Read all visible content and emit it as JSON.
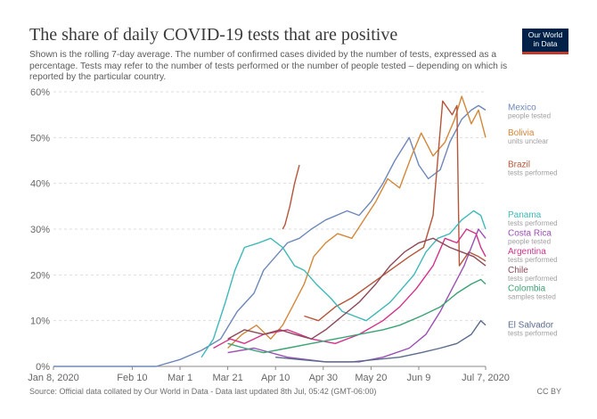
{
  "header": {
    "title": "The share of daily COVID-19 tests that are positive",
    "subtitle": "Shown is the rolling 7-day average. The number of confirmed cases divided by the number of tests, expressed as a percentage. Tests may refer to the number of tests performed or the number of people tested – depending on which is reported by the particular country.",
    "logo_line1": "Our World",
    "logo_line2": "in Data"
  },
  "footer": {
    "source": "Source: Official data collated by Our World in Data - Data last updated 8th Jul, 05:42 (GMT-06:00)",
    "license": "CC BY"
  },
  "colors": {
    "Mexico": "#6d88b8",
    "Bolivia": "#d2873a",
    "Brazil": "#b5563a",
    "Panama": "#3fb8b8",
    "Costa Rica": "#9b4fb3",
    "Argentina": "#d3338a",
    "Chile": "#8c4a5a",
    "Colombia": "#3aa375",
    "El Salvador": "#5a6b8c"
  },
  "chart_data": {
    "type": "line",
    "title": "The share of daily COVID-19 tests that are positive",
    "xlabel": "",
    "ylabel": "",
    "x_ticks": [
      "Jan 8, 2020",
      "Feb 10",
      "Mar 1",
      "Mar 21",
      "Apr 10",
      "Apr 30",
      "May 20",
      "Jun 9",
      "Jul 7, 2020"
    ],
    "y_ticks": [
      "0%",
      "10%",
      "20%",
      "30%",
      "40%",
      "50%",
      "60%"
    ],
    "ylim": [
      0,
      60
    ],
    "xlim": [
      "2020-01-08",
      "2020-07-07"
    ],
    "grid": true,
    "legend": "right",
    "series": [
      {
        "name": "Mexico",
        "note": "people tested",
        "points": [
          [
            "2020-01-08",
            0
          ],
          [
            "2020-02-20",
            0
          ],
          [
            "2020-03-01",
            1.5
          ],
          [
            "2020-03-10",
            3.5
          ],
          [
            "2020-03-18",
            6
          ],
          [
            "2020-03-25",
            12
          ],
          [
            "2020-04-01",
            16
          ],
          [
            "2020-04-05",
            21
          ],
          [
            "2020-04-10",
            24
          ],
          [
            "2020-04-15",
            27
          ],
          [
            "2020-04-20",
            28
          ],
          [
            "2020-04-25",
            30
          ],
          [
            "2020-05-01",
            32
          ],
          [
            "2020-05-10",
            34
          ],
          [
            "2020-05-15",
            33
          ],
          [
            "2020-05-20",
            36
          ],
          [
            "2020-05-25",
            40
          ],
          [
            "2020-05-30",
            45
          ],
          [
            "2020-06-05",
            50
          ],
          [
            "2020-06-09",
            44
          ],
          [
            "2020-06-13",
            41
          ],
          [
            "2020-06-18",
            43
          ],
          [
            "2020-06-22",
            49
          ],
          [
            "2020-06-27",
            54
          ],
          [
            "2020-07-01",
            56
          ],
          [
            "2020-07-04",
            57
          ],
          [
            "2020-07-07",
            56
          ]
        ]
      },
      {
        "name": "Bolivia",
        "note": "units unclear",
        "points": [
          [
            "2020-03-21",
            4
          ],
          [
            "2020-03-27",
            7
          ],
          [
            "2020-04-02",
            9
          ],
          [
            "2020-04-08",
            6
          ],
          [
            "2020-04-13",
            9
          ],
          [
            "2020-04-17",
            13
          ],
          [
            "2020-04-22",
            18
          ],
          [
            "2020-04-26",
            24
          ],
          [
            "2020-05-01",
            27
          ],
          [
            "2020-05-06",
            29
          ],
          [
            "2020-05-12",
            28
          ],
          [
            "2020-05-17",
            32
          ],
          [
            "2020-05-22",
            36
          ],
          [
            "2020-05-27",
            41
          ],
          [
            "2020-06-01",
            39
          ],
          [
            "2020-06-06",
            46
          ],
          [
            "2020-06-10",
            51
          ],
          [
            "2020-06-15",
            46
          ],
          [
            "2020-06-20",
            49
          ],
          [
            "2020-06-24",
            54
          ],
          [
            "2020-06-27",
            59
          ],
          [
            "2020-07-01",
            53
          ],
          [
            "2020-07-04",
            56
          ],
          [
            "2020-07-07",
            50
          ]
        ]
      },
      {
        "name": "Brazil",
        "note": "tests performed",
        "points": [
          [
            "2020-04-13",
            30
          ],
          [
            "2020-04-14",
            31
          ],
          [
            "2020-04-16",
            35
          ],
          [
            "2020-04-18",
            40
          ],
          [
            "2020-04-20",
            44
          ]
        ]
      },
      {
        "name": "Brazil",
        "note": "",
        "points": [
          [
            "2020-04-22",
            11
          ],
          [
            "2020-04-28",
            10
          ],
          [
            "2020-05-05",
            13
          ],
          [
            "2020-05-12",
            15
          ],
          [
            "2020-05-20",
            18
          ],
          [
            "2020-05-28",
            21
          ],
          [
            "2020-06-05",
            24
          ],
          [
            "2020-06-11",
            26
          ],
          [
            "2020-06-15",
            33
          ],
          [
            "2020-06-19",
            58
          ],
          [
            "2020-06-23",
            55
          ],
          [
            "2020-06-25",
            57
          ],
          [
            "2020-06-26",
            22
          ],
          [
            "2020-06-30",
            25
          ],
          [
            "2020-07-04",
            24
          ],
          [
            "2020-07-07",
            23
          ]
        ]
      },
      {
        "name": "Panama",
        "note": "tests performed",
        "points": [
          [
            "2020-03-10",
            2
          ],
          [
            "2020-03-15",
            6
          ],
          [
            "2020-03-20",
            14
          ],
          [
            "2020-03-24",
            21
          ],
          [
            "2020-03-28",
            26
          ],
          [
            "2020-04-03",
            27
          ],
          [
            "2020-04-08",
            28
          ],
          [
            "2020-04-13",
            26
          ],
          [
            "2020-04-18",
            22
          ],
          [
            "2020-04-22",
            21
          ],
          [
            "2020-04-27",
            18
          ],
          [
            "2020-05-03",
            15
          ],
          [
            "2020-05-08",
            12
          ],
          [
            "2020-05-13",
            11
          ],
          [
            "2020-05-18",
            10
          ],
          [
            "2020-05-23",
            12
          ],
          [
            "2020-05-28",
            14
          ],
          [
            "2020-06-02",
            17
          ],
          [
            "2020-06-07",
            20
          ],
          [
            "2020-06-12",
            25
          ],
          [
            "2020-06-17",
            28
          ],
          [
            "2020-06-22",
            29
          ],
          [
            "2020-06-27",
            32
          ],
          [
            "2020-07-02",
            34
          ],
          [
            "2020-07-05",
            33
          ],
          [
            "2020-07-07",
            30
          ]
        ]
      },
      {
        "name": "Costa Rica",
        "note": "people tested",
        "points": [
          [
            "2020-03-21",
            3
          ],
          [
            "2020-04-01",
            4
          ],
          [
            "2020-04-15",
            2
          ],
          [
            "2020-05-01",
            1
          ],
          [
            "2020-05-15",
            1
          ],
          [
            "2020-05-25",
            2
          ],
          [
            "2020-06-05",
            4
          ],
          [
            "2020-06-12",
            7
          ],
          [
            "2020-06-18",
            12
          ],
          [
            "2020-06-23",
            17
          ],
          [
            "2020-06-28",
            22
          ],
          [
            "2020-07-01",
            26
          ],
          [
            "2020-07-04",
            30
          ],
          [
            "2020-07-07",
            28
          ]
        ]
      },
      {
        "name": "Argentina",
        "note": "tests performed",
        "points": [
          [
            "2020-03-15",
            4
          ],
          [
            "2020-03-22",
            6
          ],
          [
            "2020-03-28",
            5
          ],
          [
            "2020-04-05",
            7
          ],
          [
            "2020-04-15",
            8
          ],
          [
            "2020-04-25",
            6
          ],
          [
            "2020-05-05",
            5
          ],
          [
            "2020-05-15",
            7
          ],
          [
            "2020-05-25",
            10
          ],
          [
            "2020-06-01",
            13
          ],
          [
            "2020-06-08",
            17
          ],
          [
            "2020-06-15",
            22
          ],
          [
            "2020-06-20",
            28
          ],
          [
            "2020-06-25",
            27
          ],
          [
            "2020-06-29",
            30
          ],
          [
            "2020-07-03",
            29
          ],
          [
            "2020-07-05",
            26
          ],
          [
            "2020-07-07",
            24
          ]
        ]
      },
      {
        "name": "Chile",
        "note": "tests performed",
        "points": [
          [
            "2020-03-21",
            6
          ],
          [
            "2020-03-28",
            8
          ],
          [
            "2020-04-05",
            7
          ],
          [
            "2020-04-12",
            8
          ],
          [
            "2020-04-18",
            7
          ],
          [
            "2020-04-25",
            6
          ],
          [
            "2020-05-01",
            8
          ],
          [
            "2020-05-08",
            11
          ],
          [
            "2020-05-15",
            14
          ],
          [
            "2020-05-22",
            18
          ],
          [
            "2020-05-28",
            22
          ],
          [
            "2020-06-03",
            25
          ],
          [
            "2020-06-09",
            27
          ],
          [
            "2020-06-15",
            28
          ],
          [
            "2020-06-22",
            26
          ],
          [
            "2020-06-27",
            25
          ],
          [
            "2020-07-02",
            24
          ],
          [
            "2020-07-07",
            22
          ]
        ]
      },
      {
        "name": "Colombia",
        "note": "samples tested",
        "points": [
          [
            "2020-03-21",
            5
          ],
          [
            "2020-03-28",
            4
          ],
          [
            "2020-04-05",
            3
          ],
          [
            "2020-04-15",
            4
          ],
          [
            "2020-04-25",
            5
          ],
          [
            "2020-05-05",
            6
          ],
          [
            "2020-05-15",
            7
          ],
          [
            "2020-05-25",
            8
          ],
          [
            "2020-06-01",
            9
          ],
          [
            "2020-06-10",
            11
          ],
          [
            "2020-06-18",
            13
          ],
          [
            "2020-06-25",
            16
          ],
          [
            "2020-07-01",
            18
          ],
          [
            "2020-07-05",
            19
          ],
          [
            "2020-07-07",
            18
          ]
        ]
      },
      {
        "name": "El Salvador",
        "note": "tests performed",
        "points": [
          [
            "2020-04-10",
            2
          ],
          [
            "2020-04-20",
            1.5
          ],
          [
            "2020-05-01",
            1
          ],
          [
            "2020-05-12",
            1
          ],
          [
            "2020-05-22",
            1.5
          ],
          [
            "2020-06-01",
            2
          ],
          [
            "2020-06-10",
            3
          ],
          [
            "2020-06-18",
            4
          ],
          [
            "2020-06-25",
            5
          ],
          [
            "2020-07-01",
            7
          ],
          [
            "2020-07-05",
            10
          ],
          [
            "2020-07-07",
            9
          ]
        ]
      }
    ],
    "legend_entries": [
      {
        "name": "Mexico",
        "note": "people tested",
        "y": 56
      },
      {
        "name": "Bolivia",
        "note": "units unclear",
        "y": 50.5
      },
      {
        "name": "Brazil",
        "note": "tests performed",
        "y": 43.5
      },
      {
        "name": "Panama",
        "note": "tests performed",
        "y": 32.5
      },
      {
        "name": "Costa Rica",
        "note": "people tested",
        "y": 28.5
      },
      {
        "name": "Argentina",
        "note": "tests performed",
        "y": 24.5
      },
      {
        "name": "Chile",
        "note": "tests performed",
        "y": 20.5
      },
      {
        "name": "Colombia",
        "note": "samples tested",
        "y": 16.5
      },
      {
        "name": "El Salvador",
        "note": "tests performed",
        "y": 8.5
      }
    ]
  }
}
